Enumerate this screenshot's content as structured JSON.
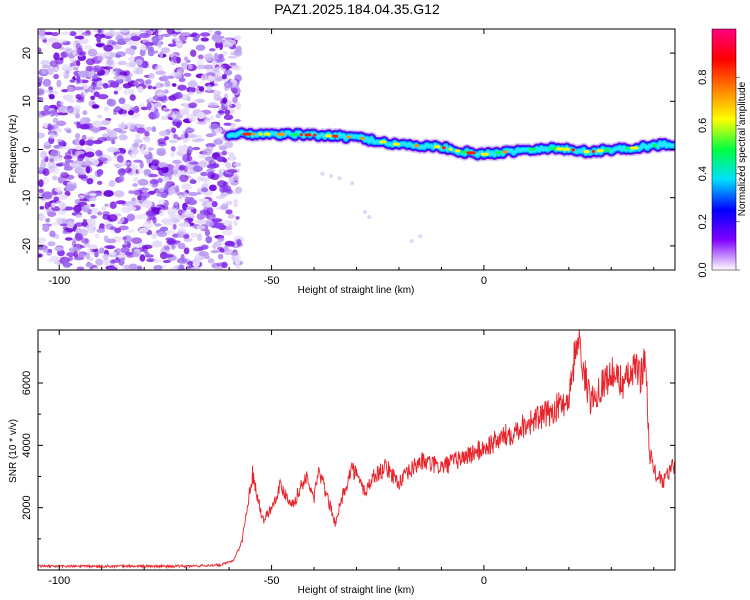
{
  "chart_data": [
    {
      "type": "heatmap",
      "title": "PAZ1.2025.184.04.35.G12",
      "xlabel": "Height of straight line (km)",
      "ylabel": "Frequency (Hz)",
      "xlim": [
        -105,
        45
      ],
      "ylim": [
        -25,
        25
      ],
      "x_ticks": [
        -100,
        -50,
        0
      ],
      "y_ticks": [
        -20,
        -10,
        0,
        10,
        20
      ],
      "colorbar": {
        "label": "Normalized spectral amplitude",
        "range": [
          0,
          1
        ],
        "ticks": [
          0,
          0.2,
          0.4,
          0.6,
          0.8
        ],
        "colormap": [
          "#ffffff",
          "#8000ff",
          "#0000ff",
          "#00e0ff",
          "#00ff40",
          "#ffff00",
          "#ff8000",
          "#ff0000",
          "#ff0080"
        ]
      },
      "noise_region_x": [
        -105,
        -59
      ],
      "ridge": {
        "x": [
          -60,
          -50,
          -40,
          -30,
          -20,
          -10,
          -5,
          0,
          5,
          10,
          15,
          20,
          25,
          30,
          35,
          40,
          45
        ],
        "y": [
          3.2,
          3.2,
          3,
          2.5,
          1,
          0.5,
          -0.5,
          -1,
          -0.5,
          0,
          0.3,
          0,
          -0.5,
          0,
          0.3,
          0.8,
          1.2
        ]
      },
      "grid": false
    },
    {
      "type": "line",
      "xlabel": "Height of straight line (km)",
      "ylabel": "SNR (10 * v/v)",
      "xlim": [
        -105,
        45
      ],
      "ylim": [
        0,
        7700
      ],
      "x_ticks": [
        -100,
        -50,
        0
      ],
      "y_ticks": [
        2000,
        4000,
        6000
      ],
      "line_color": "#e8242b",
      "series": [
        {
          "x": [
            -105,
            -70,
            -62,
            -59,
            -57,
            -55.5,
            -54.5,
            -52,
            -50,
            -48,
            -45,
            -42,
            -40,
            -39,
            -37,
            -35,
            -33,
            -31,
            -28,
            -26,
            -23,
            -20,
            -15,
            -10,
            -5,
            0,
            5,
            10,
            15,
            20,
            22,
            25,
            28,
            30,
            33,
            36,
            37,
            38,
            39,
            40,
            42,
            45
          ],
          "y": [
            120,
            120,
            160,
            300,
            900,
            2200,
            3100,
            1600,
            2000,
            2700,
            2100,
            3000,
            2300,
            3200,
            2400,
            1500,
            2500,
            3300,
            2500,
            3000,
            3300,
            2800,
            3500,
            3300,
            3600,
            3900,
            4300,
            4700,
            5000,
            5500,
            7500,
            5400,
            6000,
            6300,
            6000,
            6500,
            6200,
            6900,
            3800,
            3200,
            2800,
            3400
          ]
        }
      ],
      "grid": false
    }
  ]
}
